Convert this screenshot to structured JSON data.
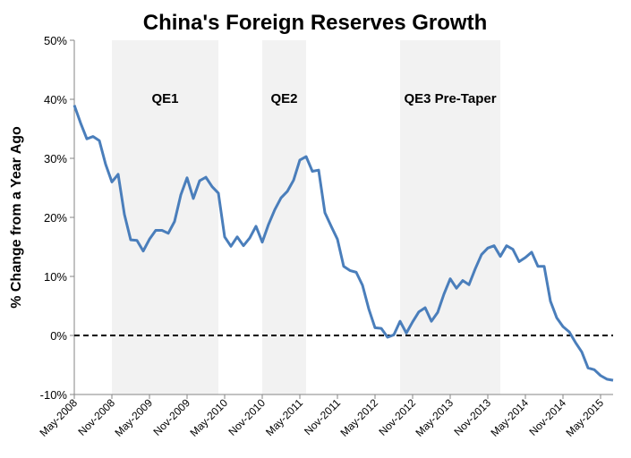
{
  "chart_data": {
    "type": "line",
    "title": "China's Foreign Reserves Growth",
    "y_label": "% Change from a Year Ago",
    "x_start": "May-2008",
    "categories": [
      "May-2008",
      null,
      null,
      null,
      null,
      null,
      "Nov-2008",
      null,
      null,
      null,
      null,
      null,
      "May-2009",
      null,
      null,
      null,
      null,
      null,
      "Nov-2009",
      null,
      null,
      null,
      null,
      null,
      "May-2010",
      null,
      null,
      null,
      null,
      null,
      "Nov-2010",
      null,
      null,
      null,
      null,
      null,
      "May-2011",
      null,
      null,
      null,
      null,
      null,
      "Nov-2011",
      null,
      null,
      null,
      null,
      null,
      "May-2012",
      null,
      null,
      null,
      null,
      null,
      "Nov-2012",
      null,
      null,
      null,
      null,
      null,
      "May-2013",
      null,
      null,
      null,
      null,
      null,
      "Nov-2013",
      null,
      null,
      null,
      null,
      null,
      "May-2014",
      null,
      null,
      null,
      null,
      null,
      "Nov-2014",
      null,
      null,
      null,
      null,
      null,
      "May-2015",
      null,
      null
    ],
    "series": [
      {
        "name": "China's Foreign Reserves Growth",
        "color": "#4a7ebb",
        "values": [
          39,
          36,
          33.3,
          33.7,
          33,
          29,
          26,
          27.3,
          20.5,
          16.2,
          16.1,
          14.3,
          16.3,
          17.8,
          17.8,
          17.3,
          19.3,
          23.8,
          26.7,
          23.2,
          26.2,
          26.8,
          25.2,
          24.1,
          16.7,
          15.1,
          16.7,
          15.2,
          16.5,
          18.5,
          15.8,
          18.8,
          21.3,
          23.3,
          24.4,
          26.3,
          29.7,
          30.3,
          27.8,
          28,
          20.8,
          18.5,
          16.3,
          11.7,
          11,
          10.7,
          8.5,
          4.5,
          1.3,
          1.2,
          -0.3,
          0.1,
          2.4,
          0.4,
          2.3,
          4,
          4.7,
          2.4,
          3.9,
          7,
          9.6,
          8,
          9.3,
          8.6,
          11.3,
          13.7,
          14.8,
          15.2,
          13.4,
          15.2,
          14.6,
          12.5,
          13.2,
          14.1,
          11.7,
          11.7,
          5.8,
          3,
          1.5,
          0.6,
          -1.2,
          -2.8,
          -5.5,
          -5.8,
          -6.8,
          -7.4,
          -7.6
        ]
      }
    ],
    "ylim": [
      -10,
      50
    ],
    "yticks": [
      {
        "value": -10,
        "label": "-10%"
      },
      {
        "value": 0,
        "label": "0%"
      },
      {
        "value": 10,
        "label": "10%"
      },
      {
        "value": 20,
        "label": "20%"
      },
      {
        "value": 30,
        "label": "30%"
      },
      {
        "value": 40,
        "label": "40%"
      },
      {
        "value": 50,
        "label": "50%"
      }
    ],
    "reference_line": 0,
    "shaded_regions": [
      {
        "label": "QE1",
        "start": "Nov-2008",
        "end": "Apr-2010"
      },
      {
        "label": "QE2",
        "start": "Nov-2010",
        "end": "Jun-2011"
      },
      {
        "label": "QE3 Pre-Taper",
        "start": "Sep-2012",
        "end": "Jan-2014"
      }
    ],
    "shade_color": "#f2f2f2"
  }
}
